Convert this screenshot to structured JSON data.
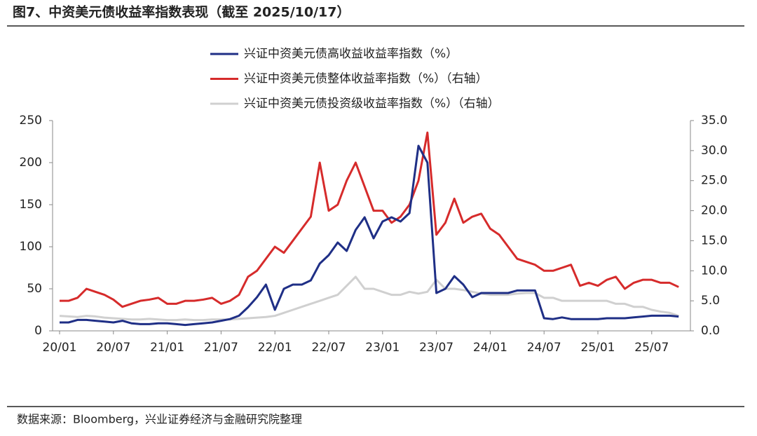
{
  "chart_data": {
    "type": "line",
    "title": "图7、中资美元债收益率指数表现（截至 2025/10/17）",
    "source": "数据来源：Bloomberg，兴业证券经济与金融研究院整理",
    "categories": [
      "20/01",
      null,
      null,
      null,
      null,
      null,
      "20/07",
      null,
      null,
      null,
      null,
      null,
      "21/01",
      null,
      null,
      null,
      null,
      null,
      "21/07",
      null,
      null,
      null,
      null,
      null,
      "22/01",
      null,
      null,
      null,
      null,
      null,
      "22/07",
      null,
      null,
      null,
      null,
      null,
      "23/01",
      null,
      null,
      null,
      null,
      null,
      "23/07",
      null,
      null,
      null,
      null,
      null,
      "24/01",
      null,
      null,
      null,
      null,
      null,
      "24/07",
      null,
      null,
      null,
      null,
      null,
      "25/01",
      null,
      null,
      null,
      null,
      null,
      "25/07",
      null,
      null,
      null
    ],
    "ylim": [
      0,
      250
    ],
    "yticks": [
      0,
      50,
      100,
      150,
      200,
      250
    ],
    "y2lim": [
      0,
      35
    ],
    "y2ticks": [
      {
        "value": 0,
        "label": "0.0"
      },
      {
        "value": 5,
        "label": "5.0"
      },
      {
        "value": 10,
        "label": "10.0"
      },
      {
        "value": 15,
        "label": "15.0"
      },
      {
        "value": 20,
        "label": "20.0"
      },
      {
        "value": 25,
        "label": "25.0"
      },
      {
        "value": 30,
        "label": "30.0"
      },
      {
        "value": 35,
        "label": "35.0"
      }
    ],
    "series": [
      {
        "name": "兴证中资美元债高收益收益率指数（%）",
        "color": "#1f2f86",
        "values": [
          10,
          10,
          13,
          13,
          12,
          11,
          10,
          12,
          9,
          8,
          8,
          9,
          9,
          8,
          7,
          8,
          9,
          10,
          12,
          14,
          18,
          28,
          40,
          55,
          25,
          50,
          55,
          55,
          60,
          80,
          90,
          105,
          95,
          120,
          135,
          110,
          130,
          135,
          130,
          140,
          220,
          200,
          45,
          50,
          65,
          55,
          40,
          45,
          45,
          45,
          45,
          48,
          48,
          48,
          15,
          14,
          16,
          14,
          14,
          14,
          14,
          15,
          15,
          15,
          16,
          17,
          18,
          18,
          18,
          17
        ]
      },
      {
        "name": "兴证中资美元债整体收益率指数（%）（右轴）",
        "color": "#d62b2b",
        "axis": "y2",
        "values": [
          5,
          5,
          5.5,
          7,
          6.5,
          6,
          5.2,
          4,
          4.5,
          5,
          5.2,
          5.5,
          4.5,
          4.5,
          5,
          5,
          5.2,
          5.5,
          4.5,
          5,
          6,
          9,
          10,
          12,
          14,
          13,
          15,
          17,
          19,
          28,
          20,
          21,
          25,
          28,
          24,
          20,
          20,
          18,
          19,
          21,
          25,
          33,
          16,
          18,
          22,
          18,
          19,
          19.5,
          17,
          16,
          14,
          12,
          11.5,
          11,
          10,
          10,
          10.5,
          11,
          7.5,
          8,
          7.5,
          8.5,
          9,
          7,
          8,
          8.5,
          8.5,
          8,
          8,
          7.3
        ]
      },
      {
        "name": "兴证中资美元债投资级收益率指数（%）（右轴）",
        "color": "#d0d0d0",
        "axis": "y2",
        "values": [
          2.5,
          2.4,
          2.3,
          2.5,
          2.4,
          2.2,
          2.1,
          2,
          1.9,
          1.9,
          2,
          1.9,
          1.8,
          1.8,
          1.9,
          1.8,
          1.8,
          1.9,
          1.9,
          1.9,
          2,
          2.1,
          2.2,
          2.3,
          2.5,
          3,
          3.5,
          4,
          4.5,
          5,
          5.5,
          6,
          7.5,
          9,
          7,
          7,
          6.5,
          6,
          6,
          6.5,
          6.2,
          6.5,
          8.5,
          7,
          7,
          6.8,
          6.5,
          6.2,
          6,
          6,
          6,
          6.2,
          6.3,
          6.3,
          5.5,
          5.5,
          5,
          5,
          5,
          5,
          5,
          5,
          4.5,
          4.5,
          4,
          4,
          3.5,
          3.2,
          3,
          2.5
        ]
      }
    ]
  }
}
